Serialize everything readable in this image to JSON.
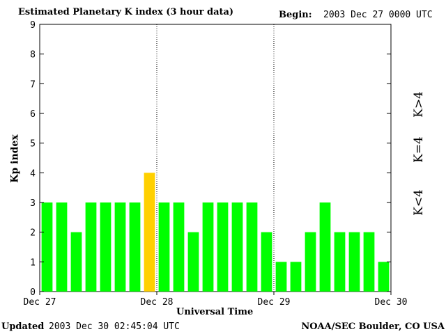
{
  "header": {
    "title": "Estimated Planetary K index (3 hour data)",
    "begin_label": "Begin:",
    "begin_value": "2003 Dec 27 0000 UTC"
  },
  "footer": {
    "updated_label": "Updated",
    "updated_value": "2003 Dec 30 02:45:04 UTC",
    "source": "NOAA/SEC Boulder, CO USA"
  },
  "colors": {
    "below4": "#00ff00",
    "equal4": "#ffd000",
    "above4": "#ff2000"
  },
  "legend": {
    "below": "K<4",
    "equal": "K=4",
    "above": "K>4"
  },
  "chart_data": {
    "type": "bar",
    "xlabel": "Universal Time",
    "ylabel": "Kp index",
    "ylim": [
      0,
      9
    ],
    "yticks": [
      0,
      1,
      2,
      3,
      4,
      5,
      6,
      7,
      8,
      9
    ],
    "xticks": [
      "Dec 27",
      "Dec 28",
      "Dec 29",
      "Dec 30"
    ],
    "values": [
      3,
      3,
      2,
      3,
      3,
      3,
      3,
      4,
      3,
      3,
      2,
      3,
      3,
      3,
      3,
      2,
      1,
      1,
      2,
      3,
      2,
      2,
      2,
      1
    ],
    "grid": "dotted vertical day separators"
  }
}
